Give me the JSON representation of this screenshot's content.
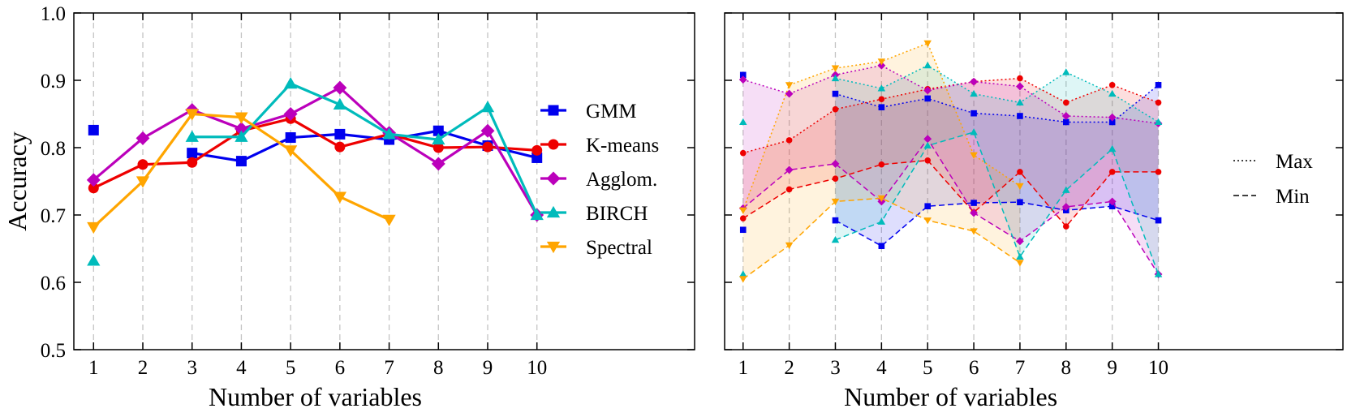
{
  "chart_data": [
    {
      "type": "line",
      "panel": "left",
      "title": "",
      "xlabel": "Number of variables",
      "ylabel": "Accuracy",
      "xlim": [
        0.6,
        13.2
      ],
      "ylim": [
        0.5,
        1.0
      ],
      "x": [
        1,
        2,
        3,
        4,
        5,
        6,
        7,
        8,
        9,
        10
      ],
      "yticks": [
        "0.5",
        "0.6",
        "0.7",
        "0.8",
        "0.9",
        "1.0"
      ],
      "xticks": [
        "1",
        "2",
        "3",
        "4",
        "5",
        "6",
        "7",
        "8",
        "9",
        "10"
      ],
      "grid": "vertical dashed at each x tick",
      "legend_position": "right",
      "series": [
        {
          "name": "GMM",
          "color": "#0000ee",
          "marker": "square",
          "values": [
            0.826,
            null,
            0.792,
            0.78,
            0.815,
            0.82,
            0.812,
            0.825,
            0.803,
            0.785
          ]
        },
        {
          "name": "K-means",
          "color": "#ee0000",
          "marker": "circle",
          "values": [
            0.74,
            0.775,
            0.778,
            0.825,
            0.843,
            0.801,
            0.82,
            0.8,
            0.801,
            0.796
          ]
        },
        {
          "name": "Agglom.",
          "color": "#bb00bb",
          "marker": "diamond",
          "values": [
            0.752,
            0.814,
            0.856,
            0.828,
            0.85,
            0.889,
            0.822,
            0.776,
            0.825,
            0.7
          ]
        },
        {
          "name": "BIRCH",
          "color": "#00bbbb",
          "marker": "triangle-up",
          "values": [
            0.632,
            null,
            0.816,
            0.816,
            0.895,
            0.864,
            0.82,
            0.812,
            0.86,
            0.7
          ]
        },
        {
          "name": "Spectral",
          "color": "#ffa500",
          "marker": "triangle-down",
          "values": [
            0.682,
            0.75,
            0.85,
            0.845,
            0.796,
            0.727,
            0.693,
            null,
            null,
            null
          ]
        }
      ]
    },
    {
      "type": "line",
      "panel": "right",
      "title": "",
      "xlabel": "Number of variables",
      "ylabel": "",
      "xlim": [
        0.6,
        14.0
      ],
      "ylim": [
        0.5,
        1.0
      ],
      "x": [
        1,
        2,
        3,
        4,
        5,
        6,
        7,
        8,
        9,
        10
      ],
      "xticks": [
        "1",
        "2",
        "3",
        "4",
        "5",
        "6",
        "7",
        "8",
        "9",
        "10"
      ],
      "grid": "vertical dashed at each x tick",
      "legend_position": "right",
      "legend": [
        {
          "label": "Max",
          "style": "dotted"
        },
        {
          "label": "Min",
          "style": "dashed"
        }
      ],
      "series": [
        {
          "name": "GMM",
          "color": "#0000ee",
          "marker": "square",
          "max": [
            0.908,
            null,
            0.88,
            0.86,
            0.873,
            0.851,
            0.847,
            0.838,
            0.838,
            0.893
          ],
          "min": [
            0.678,
            null,
            0.692,
            0.654,
            0.713,
            0.718,
            0.719,
            0.707,
            0.713,
            0.692
          ]
        },
        {
          "name": "K-means",
          "color": "#ee0000",
          "marker": "circle",
          "max": [
            0.792,
            0.811,
            0.857,
            0.872,
            0.887,
            0.898,
            0.903,
            0.867,
            0.893,
            0.867
          ],
          "min": [
            0.695,
            0.738,
            0.754,
            0.775,
            0.781,
            0.704,
            0.764,
            0.683,
            0.764,
            0.764
          ]
        },
        {
          "name": "Agglom.",
          "color": "#bb00bb",
          "marker": "diamond",
          "max": [
            0.901,
            0.88,
            0.908,
            0.922,
            0.885,
            0.898,
            0.891,
            0.847,
            0.845,
            0.836
          ],
          "min": [
            0.71,
            0.767,
            0.776,
            0.72,
            0.813,
            0.703,
            0.661,
            0.712,
            0.72,
            0.612
          ]
        },
        {
          "name": "BIRCH",
          "color": "#00bbbb",
          "marker": "triangle-up",
          "max": [
            0.838,
            null,
            0.903,
            0.888,
            0.922,
            0.88,
            0.867,
            0.912,
            0.88,
            0.838
          ],
          "min": [
            0.612,
            null,
            0.663,
            0.69,
            0.803,
            0.823,
            0.638,
            0.737,
            0.798,
            0.612
          ]
        },
        {
          "name": "Spectral",
          "color": "#ffa500",
          "marker": "triangle-down",
          "max": [
            0.707,
            0.893,
            0.918,
            0.928,
            0.955,
            0.789,
            0.743,
            null,
            null,
            null
          ],
          "min": [
            0.605,
            0.655,
            0.72,
            0.725,
            0.692,
            0.676,
            0.629,
            null,
            null,
            null
          ]
        }
      ]
    }
  ]
}
